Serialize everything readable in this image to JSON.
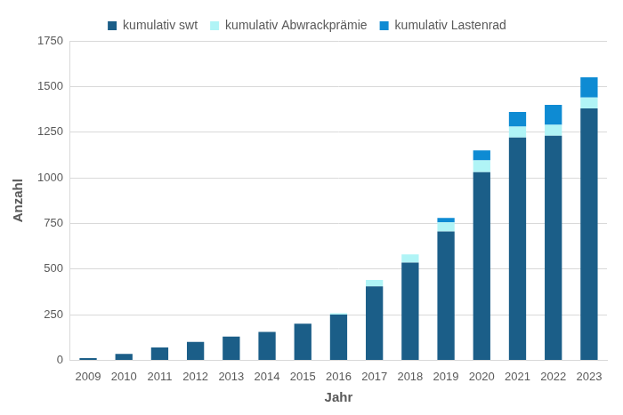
{
  "chart_data": {
    "type": "bar",
    "stacked": true,
    "grid": true,
    "legend": "top",
    "x_label": "Jahr",
    "y_label": "Anzahl",
    "categories": [
      "2009",
      "2010",
      "2011",
      "2012",
      "2013",
      "2014",
      "2015",
      "2016",
      "2017",
      "2018",
      "2019",
      "2020",
      "2021",
      "2022",
      "2023"
    ],
    "series": [
      {
        "name": "kumulativ swt",
        "color": "#1b5e88",
        "values": [
          12,
          35,
          70,
          100,
          130,
          155,
          200,
          250,
          405,
          535,
          705,
          1030,
          1220,
          1230,
          1380
        ]
      },
      {
        "name": "kumulativ Abwrackprämie",
        "color": "#b0f4f6",
        "values": [
          0,
          0,
          0,
          0,
          0,
          0,
          0,
          8,
          35,
          45,
          50,
          65,
          60,
          60,
          60
        ]
      },
      {
        "name": "kumulativ Lastenrad",
        "color": "#0e8bd3",
        "values": [
          0,
          0,
          0,
          0,
          0,
          0,
          0,
          0,
          0,
          0,
          25,
          55,
          80,
          110,
          110
        ]
      }
    ],
    "ylim": [
      0,
      1750
    ],
    "yticks": [
      0,
      250,
      500,
      750,
      1000,
      1250,
      1500,
      1750
    ]
  }
}
